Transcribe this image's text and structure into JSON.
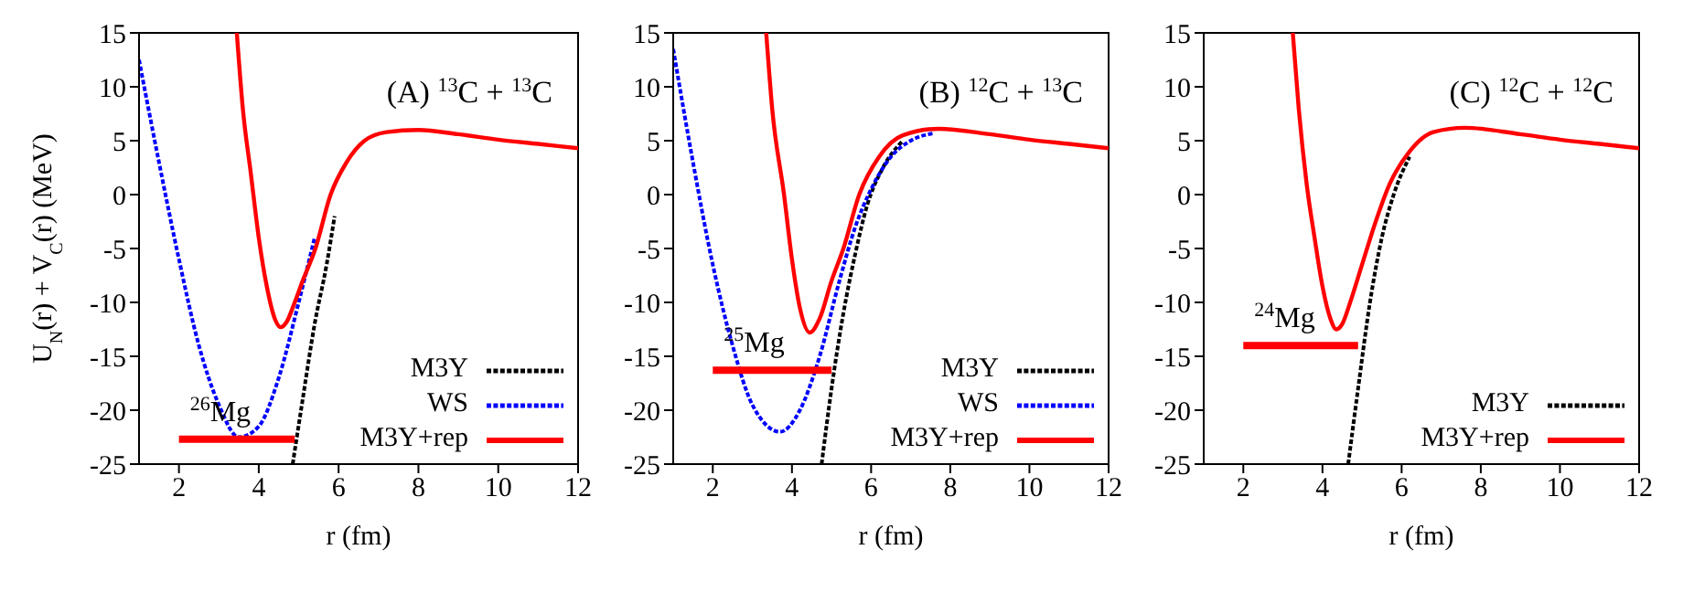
{
  "chart_data": [
    {
      "type": "line",
      "title": "(A) $^{13}$C + $^{13}$C",
      "xlabel": "r (fm)",
      "ylabel": "U$_{N}$(r) + V$_{C}$(r) (MeV)",
      "xlim": [
        1,
        12
      ],
      "ylim": [
        -25,
        15
      ],
      "xticks": [
        2,
        4,
        6,
        8,
        10,
        12
      ],
      "yticks": [
        -25,
        -20,
        -15,
        -10,
        -5,
        0,
        5,
        10,
        15
      ],
      "grid": false,
      "legend": "bottom right",
      "annotations": [
        "$^{26}$Mg"
      ],
      "series": [
        {
          "name": "M3Y",
          "color": "#000000",
          "line_style": "dotted",
          "x": [
            4.85,
            5.1,
            5.4,
            5.7,
            5.9
          ],
          "values": [
            -25,
            -19,
            -12,
            -6.5,
            -2
          ]
        },
        {
          "name": "WS",
          "color": "#0000ff",
          "line_style": "dotted",
          "x": [
            1,
            1.5,
            2,
            2.5,
            3,
            3.5,
            4,
            4.5,
            5,
            5.4
          ],
          "values": [
            12.5,
            3,
            -6,
            -14,
            -19.5,
            -22.5,
            -21.5,
            -17,
            -10,
            -4
          ]
        },
        {
          "name": "M3Y+rep",
          "color": "#ff0000",
          "line_style": "solid",
          "x": [
            3.45,
            3.6,
            3.8,
            4.0,
            4.2,
            4.4,
            4.55,
            4.7,
            4.9,
            5.1,
            5.42,
            5.8,
            6.2,
            6.65,
            7.2,
            8,
            9,
            10,
            11,
            12
          ],
          "values": [
            15,
            8,
            2,
            -4,
            -8.5,
            -11.5,
            -12.3,
            -11.8,
            -10,
            -8,
            -5,
            0,
            3,
            5,
            5.8,
            6,
            5.6,
            5.1,
            4.7,
            4.3
          ]
        },
        {
          "color": "#ff0000",
          "line_style": "solid",
          "x": [
            2,
            4.9
          ],
          "values": [
            -22.7,
            -22.7
          ]
        }
      ]
    },
    {
      "type": "line",
      "title": "(B) $^{12}$C + $^{13}$C",
      "xlabel": "r (fm)",
      "xlim": [
        1,
        12
      ],
      "ylim": [
        -25,
        15
      ],
      "xticks": [
        2,
        4,
        6,
        8,
        10,
        12
      ],
      "yticks": [
        -25,
        -20,
        -15,
        -10,
        -5,
        0,
        5,
        10,
        15
      ],
      "grid": false,
      "legend": "bottom right",
      "annotations": [
        "$^{25}$Mg"
      ],
      "series": [
        {
          "name": "M3Y",
          "color": "#000000",
          "line_style": "dotted",
          "x": [
            4.75,
            5.0,
            5.3,
            5.6,
            5.9,
            6.3,
            6.8
          ],
          "values": [
            -25,
            -18,
            -11,
            -5.5,
            -1,
            2.5,
            5
          ]
        },
        {
          "name": "WS",
          "color": "#0000ff",
          "line_style": "dotted",
          "x": [
            1,
            1.5,
            2,
            2.5,
            3,
            3.7,
            4.2,
            4.7,
            5.2,
            5.6,
            6,
            6.5,
            7,
            7.6
          ],
          "values": [
            13.5,
            3,
            -6.5,
            -14,
            -19.5,
            -22,
            -20,
            -15,
            -8,
            -3,
            0.5,
            3.5,
            5,
            5.7
          ]
        },
        {
          "name": "M3Y+rep",
          "color": "#ff0000",
          "line_style": "solid",
          "x": [
            3.35,
            3.5,
            3.8,
            4.0,
            4.2,
            4.45,
            4.7,
            5.0,
            5.3,
            5.7,
            6.2,
            6.8,
            7.7,
            9,
            10,
            11,
            12
          ],
          "values": [
            15,
            8,
            0,
            -6,
            -10.5,
            -12.8,
            -11.5,
            -8,
            -5,
            0,
            3.5,
            5.5,
            6.1,
            5.6,
            5.1,
            4.7,
            4.3
          ]
        },
        {
          "color": "#ff0000",
          "line_style": "solid",
          "x": [
            2,
            5
          ],
          "values": [
            -16.3,
            -16.3
          ]
        }
      ]
    },
    {
      "type": "line",
      "title": "(C) $^{12}$C + $^{12}$C",
      "xlabel": "r (fm)",
      "xlim": [
        1,
        12
      ],
      "ylim": [
        -25,
        15
      ],
      "xticks": [
        2,
        4,
        6,
        8,
        10,
        12
      ],
      "yticks": [
        -25,
        -20,
        -15,
        -10,
        -5,
        0,
        5,
        10,
        15
      ],
      "grid": false,
      "legend": "bottom right",
      "annotations": [
        "$^{24}$Mg"
      ],
      "series": [
        {
          "name": "M3Y",
          "color": "#000000",
          "line_style": "dotted",
          "x": [
            4.65,
            4.9,
            5.2,
            5.5,
            5.8,
            6.2
          ],
          "values": [
            -25,
            -18,
            -10,
            -4,
            0,
            3.5
          ]
        },
        {
          "name": "M3Y+rep",
          "color": "#ff0000",
          "line_style": "solid",
          "x": [
            3.25,
            3.4,
            3.6,
            3.8,
            4.0,
            4.2,
            4.35,
            4.5,
            4.7,
            5.0,
            5.3,
            5.7,
            6.2,
            6.8,
            7.6,
            9,
            10,
            11,
            12
          ],
          "values": [
            15,
            8,
            1,
            -4,
            -8.5,
            -11.5,
            -12.5,
            -12,
            -10,
            -6.5,
            -3,
            1,
            4,
            5.8,
            6.2,
            5.6,
            5.1,
            4.7,
            4.3
          ]
        },
        {
          "color": "#ff0000",
          "line_style": "solid",
          "x": [
            2,
            4.9
          ],
          "values": [
            -14,
            -14
          ]
        }
      ]
    }
  ]
}
